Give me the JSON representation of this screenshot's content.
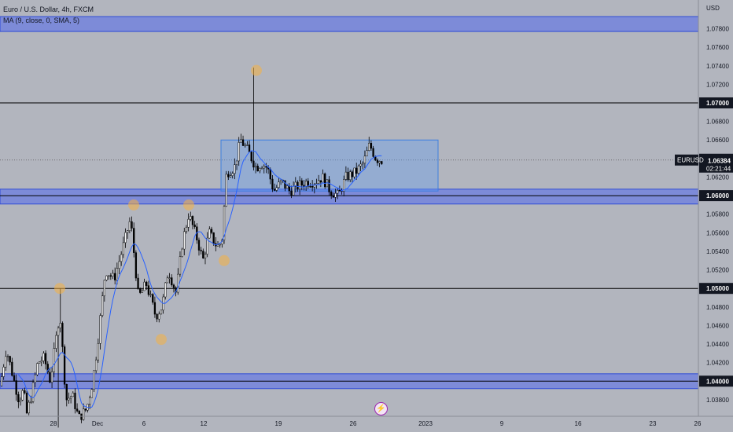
{
  "header": {
    "symbol_title": "Euro / U.S. Dollar, 4h, FXCM",
    "indicator": "MA (9, close, 0, SMA, 5)"
  },
  "price_axis": {
    "currency": "USD",
    "ticks": [
      "1.07800",
      "1.07600",
      "1.07400",
      "1.07200",
      "1.07000",
      "1.06800",
      "1.06600",
      "1.06384",
      "1.06200",
      "1.06000",
      "1.05800",
      "1.05600",
      "1.05400",
      "1.05200",
      "1.05000",
      "1.04800",
      "1.04600",
      "1.04400",
      "1.04200",
      "1.04000",
      "1.03800"
    ],
    "highlighted_levels": [
      "1.07000",
      "1.06000",
      "1.05000",
      "1.04000"
    ],
    "current_price": {
      "symbol": "EURUSD",
      "price": "1.06384",
      "countdown": "02:21:44"
    }
  },
  "time_axis": {
    "labels": [
      "28",
      "Dec",
      "6",
      "12",
      "19",
      "26",
      "2023",
      "9",
      "16",
      "23",
      "26"
    ]
  },
  "chart_data": {
    "type": "candlestick",
    "instrument": "EURUSD",
    "timeframe": "4h",
    "horizontal_lines": [
      1.07,
      1.06,
      1.05,
      1.04
    ],
    "zones": [
      {
        "from": 1.0793,
        "to": 1.0777
      },
      {
        "from": 1.0607,
        "to": 1.0591
      },
      {
        "from": 1.0408,
        "to": 1.0392
      }
    ],
    "range_box": {
      "top": 1.066,
      "bottom": 1.0605
    },
    "current_price": 1.06384,
    "swing_markers": [
      1.05,
      1.059,
      1.059,
      1.0445,
      1.053,
      1.0735
    ],
    "candle_count": 182,
    "ma_period": 9,
    "colors": {
      "candles": "#000000",
      "ma": "#2962ff",
      "zone_fill": "#6b7ee0",
      "box": "#5b9cf5",
      "marker": "#f5b041",
      "background": "#b2b5be"
    }
  }
}
